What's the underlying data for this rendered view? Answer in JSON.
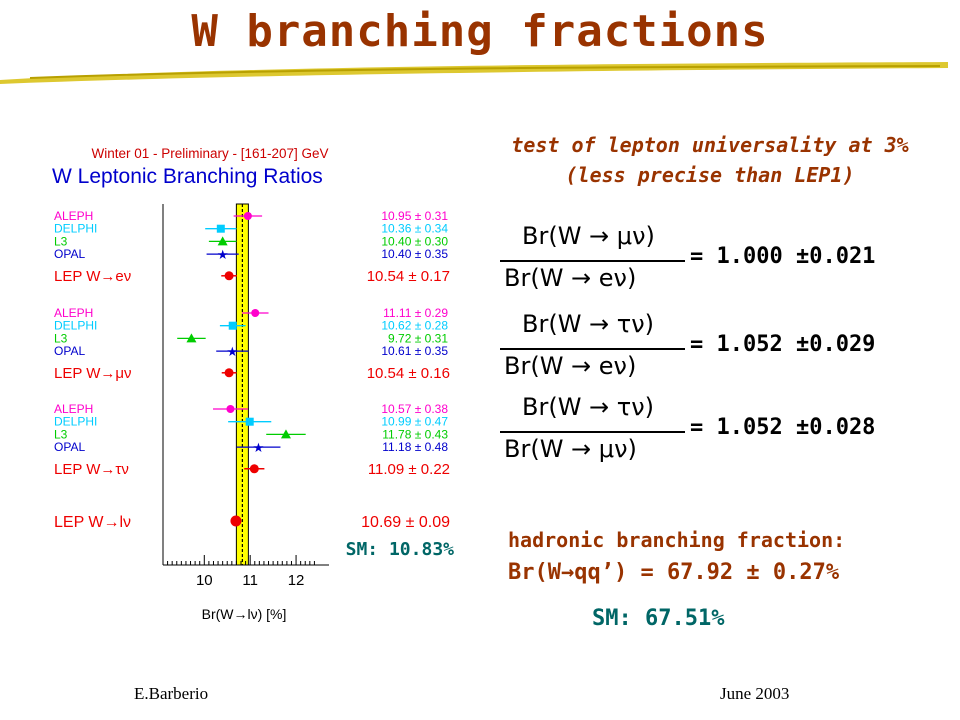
{
  "slide": {
    "title": "W branching fractions",
    "footer_left": "E.Barberio",
    "footer_right": "June 2003"
  },
  "right": {
    "line1": "test of lepton universality at 3%",
    "line2": "(less precise than LEP1)",
    "ratios": [
      {
        "num": "Br(W → μν)",
        "den": "Br(W → eν)",
        "value": "= 1.000 ±0.021"
      },
      {
        "num": "Br(W → τν)",
        "den": "Br(W → eν)",
        "value": "= 1.052 ±0.029"
      },
      {
        "num": "Br(W → τν)",
        "den": "Br(W → μν)",
        "value": "= 1.052 ±0.028"
      }
    ],
    "hadronic_label": "hadronic branching fraction:",
    "hadronic_value": "Br(W→qq’) = 67.92 ± 0.27%",
    "hadronic_sm": "SM: 67.51%"
  },
  "colors": {
    "title": "#993300",
    "aleph": "#ff00cc",
    "delphi": "#00ccff",
    "l3": "#00cc00",
    "opal": "#0000cc",
    "lep": "#ee0000",
    "sm_band": "#ffff00",
    "sm_text": "#006666"
  },
  "chart_data": {
    "type": "scatter",
    "header": "Winter 01 - Preliminary - [161-207] GeV",
    "title": "W Leptonic Branching Ratios",
    "xlabel": "Br(W→lν) [%]",
    "xticks": [
      "10",
      "11",
      "12"
    ],
    "xlim": [
      9.1,
      12.5
    ],
    "sm_value": 10.83,
    "sm_label": "SM: 10.83%",
    "groups": [
      {
        "entries": [
          {
            "name": "ALEPH",
            "value": 10.95,
            "error": 0.31,
            "text": "10.95 ± 0.31",
            "color": "#ff00cc",
            "marker": "circle"
          },
          {
            "name": "DELPHI",
            "value": 10.36,
            "error": 0.34,
            "text": "10.36 ± 0.34",
            "color": "#00ccff",
            "marker": "square"
          },
          {
            "name": "L3",
            "value": 10.4,
            "error": 0.3,
            "text": "10.40 ± 0.30",
            "color": "#00cc00",
            "marker": "triangle"
          },
          {
            "name": "OPAL",
            "value": 10.4,
            "error": 0.35,
            "text": "10.40 ± 0.35",
            "color": "#0000cc",
            "marker": "star"
          }
        ],
        "combined": {
          "label": "LEP W→eν",
          "value": 10.54,
          "error": 0.17,
          "text": "10.54 ±  0.17"
        }
      },
      {
        "entries": [
          {
            "name": "ALEPH",
            "value": 11.11,
            "error": 0.29,
            "text": "11.11 ± 0.29",
            "color": "#ff00cc",
            "marker": "circle"
          },
          {
            "name": "DELPHI",
            "value": 10.62,
            "error": 0.28,
            "text": "10.62 ± 0.28",
            "color": "#00ccff",
            "marker": "square"
          },
          {
            "name": "L3",
            "value": 9.72,
            "error": 0.31,
            "text": "9.72 ± 0.31",
            "color": "#00cc00",
            "marker": "triangle"
          },
          {
            "name": "OPAL",
            "value": 10.61,
            "error": 0.35,
            "text": "10.61 ± 0.35",
            "color": "#0000cc",
            "marker": "star"
          }
        ],
        "combined": {
          "label": "LEP W→μν",
          "value": 10.54,
          "error": 0.16,
          "text": "10.54 ±  0.16"
        }
      },
      {
        "entries": [
          {
            "name": "ALEPH",
            "value": 10.57,
            "error": 0.38,
            "text": "10.57 ± 0.38",
            "color": "#ff00cc",
            "marker": "circle"
          },
          {
            "name": "DELPHI",
            "value": 10.99,
            "error": 0.47,
            "text": "10.99 ± 0.47",
            "color": "#00ccff",
            "marker": "square"
          },
          {
            "name": "L3",
            "value": 11.78,
            "error": 0.43,
            "text": "11.78 ± 0.43",
            "color": "#00cc00",
            "marker": "triangle"
          },
          {
            "name": "OPAL",
            "value": 11.18,
            "error": 0.48,
            "text": "11.18 ± 0.48",
            "color": "#0000cc",
            "marker": "star"
          }
        ],
        "combined": {
          "label": "LEP W→τν",
          "value": 11.09,
          "error": 0.22,
          "text": "11.09 ±  0.22"
        }
      }
    ],
    "overall": {
      "label": "LEP W→lν",
      "value": 10.69,
      "error": 0.09,
      "text": "10.69 ±  0.09"
    }
  }
}
